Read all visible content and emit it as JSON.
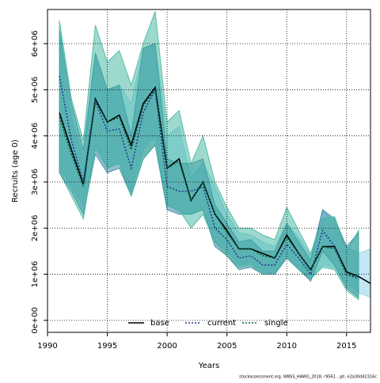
{
  "chart_data": {
    "type": "line",
    "x_label": "Years",
    "y_label": "Recruits (age 0)",
    "credit": "stockassessment.org, WBSS_HAWG_2018, r9561 , git: e2a30d42316c",
    "x": [
      1991,
      1992,
      1993,
      1994,
      1995,
      1996,
      1997,
      1998,
      1999,
      2000,
      2001,
      2002,
      2003,
      2004,
      2005,
      2006,
      2007,
      2008,
      2009,
      2010,
      2011,
      2012,
      2013,
      2014,
      2015,
      2016,
      2017
    ],
    "xlim": [
      1990,
      2017
    ],
    "xticks": [
      1990,
      1995,
      2000,
      2005,
      2010,
      2015
    ],
    "ylim": [
      -260000,
      6740000
    ],
    "yticks": [
      {
        "value": 0,
        "label": "0e+00"
      },
      {
        "value": 1000000,
        "label": "1e+06"
      },
      {
        "value": 2000000,
        "label": "2e+06"
      },
      {
        "value": 3000000,
        "label": "3e+06"
      },
      {
        "value": 4000000,
        "label": "4e+06"
      },
      {
        "value": 5000000,
        "label": "5e+06"
      },
      {
        "value": 6000000,
        "label": "6e+06"
      }
    ],
    "grid": true,
    "legend": "bottom",
    "series": [
      {
        "name": "base",
        "color": "#000000",
        "dash": "none",
        "band_color": "#87ceeb",
        "values": [
          4500000,
          3700000,
          2950000,
          4800000,
          4300000,
          4450000,
          3800000,
          4700000,
          5050000,
          3300000,
          3500000,
          2600000,
          3000000,
          2300000,
          1950000,
          1550000,
          1550000,
          1450000,
          1350000,
          1850000,
          1450000,
          1100000,
          1600000,
          1600000,
          1050000,
          950000,
          800000
        ],
        "lower": [
          3300000,
          2900000,
          2500000,
          3700000,
          3300000,
          3400000,
          2800000,
          3700000,
          4000000,
          2500000,
          2350000,
          2300000,
          2400000,
          1700000,
          1500000,
          1200000,
          1250000,
          1050000,
          1000000,
          1400000,
          1150000,
          900000,
          1200000,
          1150000,
          800000,
          600000,
          500000
        ],
        "upper": [
          6200000,
          4400000,
          3500000,
          5700000,
          5000000,
          5100000,
          4700000,
          5900000,
          6000000,
          4000000,
          4200000,
          3100000,
          3400000,
          2900000,
          2300000,
          1900000,
          1850000,
          1700000,
          1600000,
          2100000,
          1800000,
          1400000,
          2400000,
          2100000,
          1600000,
          1450000,
          1550000
        ]
      },
      {
        "name": "current",
        "color": "#1f3f8f",
        "dash": "2 2",
        "band_color": "#2e7f9f",
        "values": [
          5300000,
          3900000,
          3000000,
          4750000,
          4100000,
          4150000,
          3300000,
          4500000,
          5000000,
          2900000,
          2800000,
          2800000,
          2900000,
          2000000,
          1750000,
          1350000,
          1400000,
          1200000,
          1200000,
          1650000,
          1350000,
          1000000,
          1950000,
          1600000,
          1000000,
          900000,
          null
        ],
        "lower": [
          3200000,
          2800000,
          2300000,
          3600000,
          3200000,
          3300000,
          2700000,
          3500000,
          3800000,
          2400000,
          2300000,
          2300000,
          2400000,
          1600000,
          1400000,
          1100000,
          1150000,
          1000000,
          1000000,
          1350000,
          1100000,
          850000,
          1500000,
          1200000,
          700000,
          500000,
          null
        ],
        "upper": [
          6300000,
          4700000,
          3700000,
          5800000,
          5000000,
          5100000,
          4000000,
          5900000,
          6000000,
          3500000,
          3400000,
          3400000,
          3500000,
          2500000,
          2100000,
          1700000,
          1750000,
          1500000,
          1500000,
          2100000,
          1700000,
          1300000,
          2400000,
          2200000,
          1600000,
          1900000,
          null
        ]
      },
      {
        "name": "single",
        "color": "#0b5b3b",
        "dash": "2 2",
        "band_color": "#3cb39b",
        "values": [
          4400000,
          3600000,
          2900000,
          4750000,
          4300000,
          4400000,
          3700000,
          4650000,
          5000000,
          3300000,
          3450000,
          2600000,
          3000000,
          2300000,
          1900000,
          1550000,
          1550000,
          1400000,
          1350000,
          1800000,
          1450000,
          1100000,
          1600000,
          1550000,
          1000000,
          950000,
          null
        ],
        "lower": [
          3200000,
          2700000,
          2200000,
          3800000,
          3300000,
          3400000,
          2700000,
          3500000,
          3800000,
          2500000,
          2400000,
          2000000,
          2300000,
          1700000,
          1400000,
          1150000,
          1200000,
          1000000,
          1000000,
          1400000,
          1100000,
          900000,
          1150000,
          1100000,
          650000,
          450000,
          null
        ],
        "upper": [
          6500000,
          4800000,
          3900000,
          6400000,
          5600000,
          5850000,
          5100000,
          6000000,
          6700000,
          4300000,
          4550000,
          3400000,
          4000000,
          3000000,
          2450000,
          2000000,
          2000000,
          1850000,
          1750000,
          2450000,
          1950000,
          1450000,
          2200000,
          2250000,
          1500000,
          1950000,
          null
        ]
      }
    ]
  }
}
